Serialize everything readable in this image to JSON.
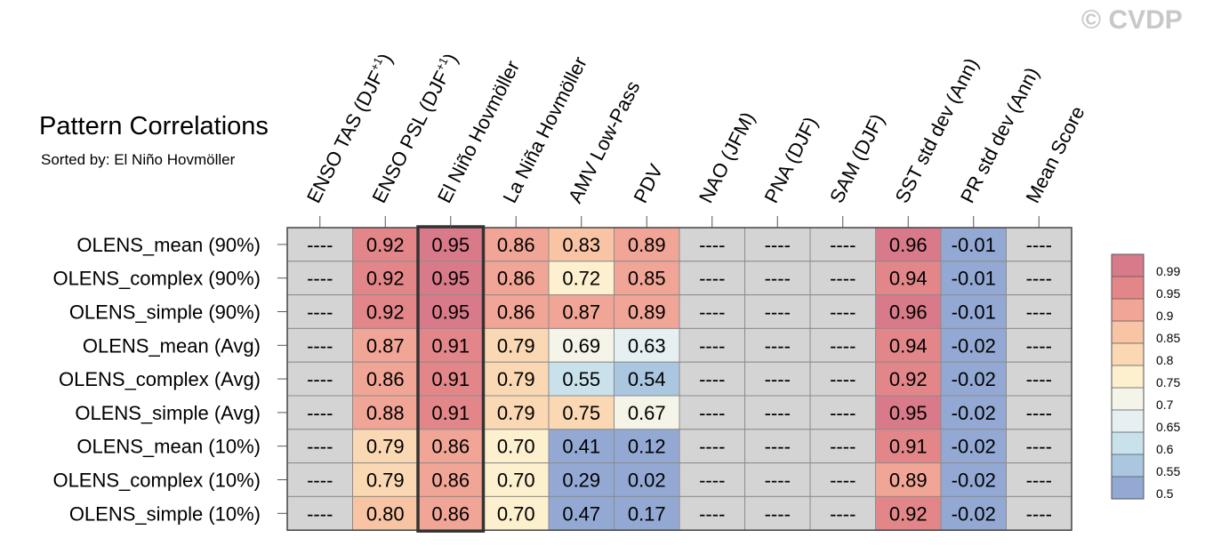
{
  "chart_data": {
    "type": "heatmap",
    "title": "Pattern Correlations",
    "subtitle": "Sorted by: El Niño Hovmöller",
    "watermark": "© CVDP",
    "columns": [
      "ENSO TAS (DJF+1)",
      "ENSO PSL (DJF+1)",
      "El Niño Hovmöller",
      "La Niña Hovmöller",
      "AMV Low-Pass",
      "PDV",
      "NAO (JFM)",
      "PNA (DJF)",
      "SAM (DJF)",
      "SST std dev (Ann)",
      "PR std dev (Ann)",
      "Mean Score"
    ],
    "rows": [
      "OLENS_mean (90%)",
      "OLENS_complex (90%)",
      "OLENS_simple (90%)",
      "OLENS_mean (Avg)",
      "OLENS_complex (Avg)",
      "OLENS_simple (Avg)",
      "OLENS_mean (10%)",
      "OLENS_complex (10%)",
      "OLENS_simple (10%)"
    ],
    "values": [
      [
        "----",
        "0.92",
        "0.95",
        "0.86",
        "0.83",
        "0.89",
        "----",
        "----",
        "----",
        "0.96",
        "-0.01",
        "----"
      ],
      [
        "----",
        "0.92",
        "0.95",
        "0.86",
        "0.72",
        "0.85",
        "----",
        "----",
        "----",
        "0.94",
        "-0.01",
        "----"
      ],
      [
        "----",
        "0.92",
        "0.95",
        "0.86",
        "0.87",
        "0.89",
        "----",
        "----",
        "----",
        "0.96",
        "-0.01",
        "----"
      ],
      [
        "----",
        "0.87",
        "0.91",
        "0.79",
        "0.69",
        "0.63",
        "----",
        "----",
        "----",
        "0.94",
        "-0.02",
        "----"
      ],
      [
        "----",
        "0.86",
        "0.91",
        "0.79",
        "0.55",
        "0.54",
        "----",
        "----",
        "----",
        "0.92",
        "-0.02",
        "----"
      ],
      [
        "----",
        "0.88",
        "0.91",
        "0.79",
        "0.75",
        "0.67",
        "----",
        "----",
        "----",
        "0.95",
        "-0.02",
        "----"
      ],
      [
        "----",
        "0.79",
        "0.86",
        "0.70",
        "0.41",
        "0.12",
        "----",
        "----",
        "----",
        "0.91",
        "-0.02",
        "----"
      ],
      [
        "----",
        "0.79",
        "0.86",
        "0.70",
        "0.29",
        "0.02",
        "----",
        "----",
        "----",
        "0.89",
        "-0.02",
        "----"
      ],
      [
        "----",
        "0.80",
        "0.86",
        "0.70",
        "0.47",
        "0.17",
        "----",
        "----",
        "----",
        "0.92",
        "-0.02",
        "----"
      ]
    ],
    "highlighted_column": "El Niño Hovmöller",
    "missing_color": "#d4d4d4",
    "colorbar": {
      "labels": [
        "0.99",
        "0.95",
        "0.9",
        "0.85",
        "0.8",
        "0.75",
        "0.7",
        "0.65",
        "0.6",
        "0.55",
        "0.5"
      ],
      "colors": [
        "#d97a8a",
        "#e3868a",
        "#f0a596",
        "#f8c4a4",
        "#fad8b3",
        "#fdf0cf",
        "#f4f4e8",
        "#e6f0f3",
        "#c9e1eb",
        "#abc6df",
        "#93a9d4"
      ]
    }
  }
}
